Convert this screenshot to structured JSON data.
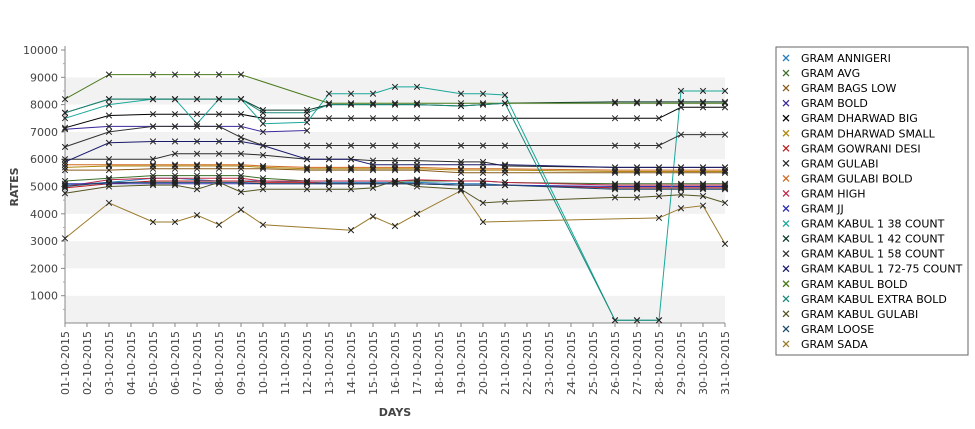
{
  "chart_data": {
    "type": "line",
    "xlabel": "DAYS",
    "ylabel": "RATES",
    "ylim": [
      0,
      10000
    ],
    "yticks": [
      1000,
      2000,
      3000,
      4000,
      5000,
      6000,
      7000,
      8000,
      9000,
      10000
    ],
    "grid": "alternating horizontal bands",
    "legend": "right",
    "categories": [
      "01-10-2015",
      "02-10-2015",
      "03-10-2015",
      "04-10-2015",
      "05-10-2015",
      "06-10-2015",
      "07-10-2015",
      "08-10-2015",
      "09-10-2015",
      "10-10-2015",
      "11-10-2015",
      "12-10-2015",
      "13-10-2015",
      "14-10-2015",
      "15-10-2015",
      "16-10-2015",
      "17-10-2015",
      "18-10-2015",
      "19-10-2015",
      "20-10-2015",
      "21-10-2015",
      "22-10-2015",
      "23-10-2015",
      "24-10-2015",
      "25-10-2015",
      "26-10-2015",
      "27-10-2015",
      "28-10-2015",
      "29-10-2015",
      "30-10-2015",
      "31-10-2015"
    ],
    "series": [
      {
        "name": "GRAM ANNIGERI",
        "color": "#2a7fbf",
        "values": [
          5050,
          null,
          5150,
          null,
          5300,
          5300,
          5250,
          5200,
          5200,
          5200,
          null,
          5150,
          5150,
          5150,
          5150,
          5150,
          5150,
          null,
          5100,
          5100,
          5050,
          null,
          null,
          null,
          null,
          4950,
          4950,
          4950,
          4950,
          4950,
          4950
        ]
      },
      {
        "name": "GRAM AVG",
        "color": "#3a6f2a",
        "values": [
          5200,
          null,
          5300,
          null,
          5400,
          5400,
          5400,
          5400,
          5400,
          5300,
          null,
          5200,
          5200,
          5200,
          5200,
          5200,
          5200,
          null,
          5200,
          5200,
          5150,
          null,
          null,
          null,
          null,
          5100,
          5100,
          5100,
          5100,
          5100,
          5100
        ]
      },
      {
        "name": "GRAM BAGS LOW",
        "color": "#8a5a1a",
        "values": [
          5600,
          null,
          5600,
          null,
          5650,
          5650,
          5650,
          5650,
          5650,
          5650,
          null,
          5600,
          5600,
          5600,
          5600,
          5600,
          5600,
          null,
          5500,
          5500,
          5500,
          null,
          null,
          null,
          null,
          5500,
          5500,
          5500,
          5500,
          5500,
          5500
        ]
      },
      {
        "name": "GRAM BOLD",
        "color": "#3a2a9a",
        "values": [
          7100,
          null,
          7200,
          null,
          7200,
          7200,
          7200,
          7200,
          7200,
          7000,
          null,
          7050,
          null,
          null,
          null,
          null,
          null,
          null,
          null,
          null,
          null,
          null,
          null,
          null,
          null,
          null,
          null,
          null,
          null,
          null,
          null
        ]
      },
      {
        "name": "GRAM DHARWAD BIG",
        "color": "#000000",
        "values": [
          7150,
          null,
          7600,
          null,
          7650,
          7650,
          7650,
          7650,
          7650,
          7500,
          null,
          7500,
          7500,
          7500,
          7500,
          7500,
          7500,
          null,
          7500,
          7500,
          7500,
          null,
          null,
          null,
          null,
          7500,
          7500,
          7500,
          7900,
          7900,
          7900
        ]
      },
      {
        "name": "GRAM DHARWAD SMALL",
        "color": "#b08a10",
        "values": [
          5700,
          null,
          5750,
          null,
          5750,
          5750,
          5750,
          5750,
          5750,
          5700,
          null,
          5650,
          5650,
          5650,
          5650,
          5650,
          5650,
          null,
          5600,
          5600,
          5600,
          null,
          null,
          null,
          null,
          5550,
          5550,
          5550,
          5550,
          5550,
          5550
        ]
      },
      {
        "name": "GRAM GOWRANI DESI",
        "color": "#c02020",
        "values": [
          4950,
          null,
          5100,
          null,
          5200,
          5200,
          5200,
          5200,
          5200,
          5150,
          null,
          5150,
          5100,
          5100,
          5100,
          5100,
          5100,
          null,
          5050,
          5050,
          5050,
          null,
          null,
          null,
          null,
          4950,
          4950,
          4950,
          4950,
          4950,
          4950
        ]
      },
      {
        "name": "GRAM GULABI",
        "color": "#2a2a2a",
        "values": [
          6000,
          null,
          6000,
          null,
          6000,
          6200,
          6200,
          6200,
          6200,
          6150,
          null,
          6000,
          6000,
          6000,
          5950,
          5950,
          5950,
          null,
          5900,
          5900,
          5750,
          null,
          null,
          null,
          null,
          5700,
          5700,
          5700,
          5700,
          5700,
          5700
        ]
      },
      {
        "name": "GRAM GULABI BOLD",
        "color": "#d2691e",
        "values": [
          5800,
          null,
          5800,
          null,
          5800,
          5800,
          5800,
          5800,
          5800,
          5750,
          null,
          5700,
          5700,
          5700,
          5700,
          5700,
          5700,
          null,
          5650,
          5650,
          5650,
          null,
          null,
          null,
          null,
          5600,
          5600,
          5600,
          5600,
          5600,
          5600
        ]
      },
      {
        "name": "GRAM HIGH",
        "color": "#c0284a",
        "values": [
          5000,
          null,
          5250,
          null,
          5300,
          5300,
          5300,
          5300,
          5300,
          5200,
          null,
          5200,
          5200,
          5200,
          5200,
          5200,
          5250,
          null,
          5200,
          5200,
          5150,
          null,
          null,
          null,
          null,
          5050,
          5050,
          5050,
          5050,
          5050,
          5050
        ]
      },
      {
        "name": "GRAM JJ",
        "color": "#3030b0",
        "values": [
          5100,
          null,
          5100,
          null,
          5100,
          5100,
          5100,
          5100,
          5100,
          5100,
          null,
          5100,
          5100,
          5100,
          5100,
          5100,
          5100,
          null,
          5050,
          5050,
          5050,
          null,
          null,
          null,
          null,
          5000,
          5000,
          5000,
          5000,
          5000,
          5000
        ]
      },
      {
        "name": "GRAM KABUL 1 38 COUNT",
        "color": "#1aa89a",
        "values": [
          7500,
          null,
          8000,
          null,
          8200,
          8200,
          7300,
          8200,
          8200,
          7300,
          null,
          7350,
          8400,
          8400,
          8400,
          8650,
          8650,
          null,
          8400,
          8400,
          8350,
          null,
          null,
          null,
          null,
          100,
          100,
          100,
          8500,
          8500,
          8500
        ]
      },
      {
        "name": "GRAM KABUL 1 42 COUNT",
        "color": "#0a3a2a",
        "values": [
          7700,
          null,
          8200,
          null,
          8200,
          8200,
          8200,
          8200,
          8200,
          7800,
          null,
          7800,
          8000,
          8000,
          8000,
          8000,
          8000,
          null,
          7950,
          8000,
          8050,
          null,
          null,
          null,
          null,
          8100,
          8100,
          8100,
          8100,
          8100,
          8100
        ]
      },
      {
        "name": "GRAM KABUL 1 58 COUNT",
        "color": "#333333",
        "values": [
          6450,
          null,
          7000,
          null,
          7200,
          7200,
          7200,
          7200,
          6800,
          6500,
          null,
          6500,
          6500,
          6500,
          6500,
          6500,
          6500,
          null,
          6500,
          6500,
          6500,
          null,
          null,
          null,
          null,
          6500,
          6500,
          6500,
          6900,
          6900,
          6900
        ]
      },
      {
        "name": "GRAM KABUL 1 72-75 COUNT",
        "color": "#1a1a6a",
        "values": [
          5900,
          null,
          6600,
          null,
          6650,
          6650,
          6650,
          6650,
          6650,
          6500,
          null,
          6000,
          6000,
          6000,
          5800,
          5800,
          5800,
          null,
          5800,
          5800,
          5800,
          null,
          null,
          null,
          null,
          5700,
          5700,
          5700,
          5700,
          5700,
          5700
        ]
      },
      {
        "name": "GRAM KABUL BOLD",
        "color": "#4a7a1a",
        "values": [
          8200,
          null,
          9100,
          null,
          9100,
          9100,
          9100,
          9100,
          9100,
          null,
          null,
          null,
          8050,
          8050,
          8050,
          8050,
          8050,
          null,
          8050,
          8050,
          8050,
          null,
          null,
          null,
          null,
          8050,
          8050,
          8050,
          8050,
          8050,
          8050
        ]
      },
      {
        "name": "GRAM KABUL EXTRA BOLD",
        "color": "#1a8a7a",
        "values": [
          7700,
          null,
          8200,
          null,
          8200,
          8200,
          8200,
          8200,
          8200,
          7700,
          null,
          7700,
          8000,
          8000,
          8000,
          8000,
          8000,
          null,
          7950,
          8000,
          8050,
          null,
          null,
          null,
          null,
          100,
          100,
          100,
          null,
          null,
          null
        ]
      },
      {
        "name": "GRAM KABUL GULABI",
        "color": "#555522",
        "values": [
          4750,
          null,
          5000,
          null,
          5050,
          5050,
          4900,
          5150,
          4800,
          4900,
          null,
          4900,
          4900,
          4900,
          4950,
          5200,
          5000,
          null,
          4900,
          4400,
          4450,
          null,
          null,
          null,
          null,
          4600,
          4600,
          4650,
          4700,
          4650,
          4400
        ]
      },
      {
        "name": "GRAM LOOSE",
        "color": "#1a4a6a",
        "values": [
          5000,
          null,
          5150,
          null,
          5150,
          5150,
          5150,
          5150,
          5150,
          5100,
          null,
          5100,
          5100,
          5100,
          5100,
          5100,
          5100,
          null,
          5050,
          5050,
          5050,
          null,
          null,
          null,
          null,
          4900,
          4900,
          4900,
          4900,
          4900,
          4900
        ]
      },
      {
        "name": "GRAM SADA",
        "color": "#9a7a2a",
        "values": [
          3100,
          null,
          4400,
          null,
          3700,
          3700,
          3950,
          3600,
          4150,
          3600,
          null,
          null,
          null,
          3400,
          3900,
          3550,
          4000,
          null,
          4850,
          3700,
          null,
          null,
          null,
          null,
          null,
          null,
          null,
          3850,
          4200,
          4300,
          2900
        ]
      }
    ]
  }
}
